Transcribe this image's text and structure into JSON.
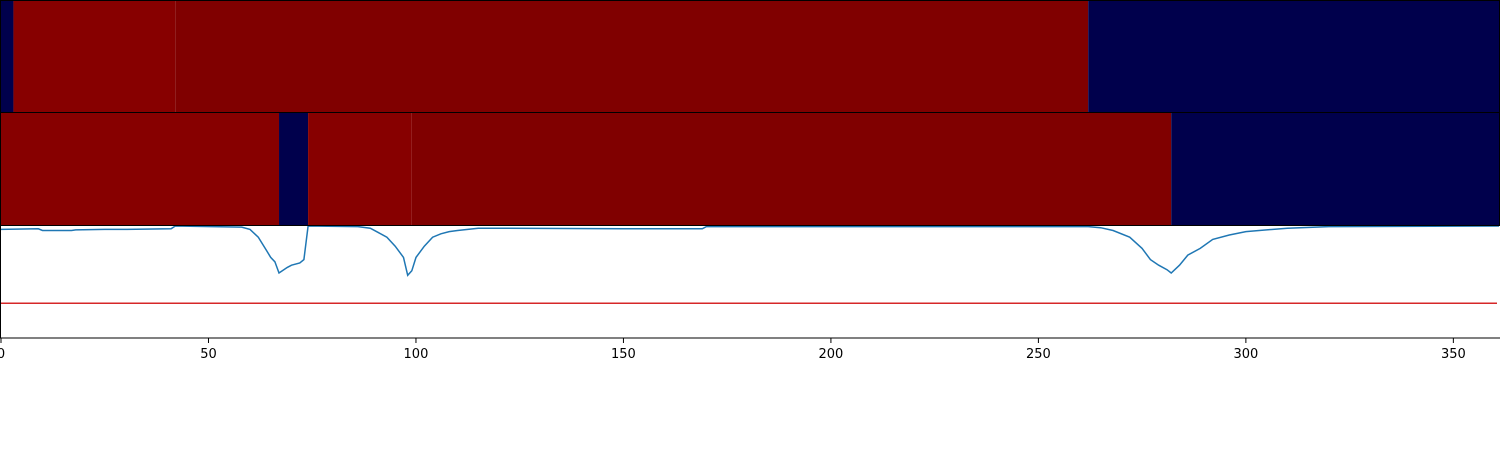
{
  "chart_data": [
    {
      "type": "heatmap",
      "xlim": [
        0,
        361
      ],
      "colors": {
        "high": "#800000",
        "high_alt": "#870000",
        "low": "#00004c"
      },
      "segments": [
        {
          "x0": 0,
          "x1": 3,
          "level": "low"
        },
        {
          "x0": 3,
          "x1": 42,
          "level": "high_alt"
        },
        {
          "x0": 42,
          "x1": 262,
          "level": "high"
        },
        {
          "x0": 262,
          "x1": 361,
          "level": "low"
        }
      ]
    },
    {
      "type": "heatmap",
      "xlim": [
        0,
        361
      ],
      "colors": {
        "high": "#800000",
        "high_alt": "#870000",
        "low": "#00004c"
      },
      "segments": [
        {
          "x0": 0,
          "x1": 67,
          "level": "high_alt"
        },
        {
          "x0": 67,
          "x1": 74,
          "level": "low"
        },
        {
          "x0": 74,
          "x1": 99,
          "level": "high_alt"
        },
        {
          "x0": 99,
          "x1": 282,
          "level": "high"
        },
        {
          "x0": 282,
          "x1": 361,
          "level": "low"
        }
      ]
    },
    {
      "type": "line",
      "xlim": [
        0,
        361
      ],
      "ylim": [
        0,
        1
      ],
      "x_ticks": [
        0,
        50,
        100,
        150,
        200,
        250,
        300,
        350
      ],
      "tick_labels": [
        "0",
        "50",
        "100",
        "150",
        "200",
        "250",
        "300",
        "350"
      ],
      "threshold": {
        "value": 0.31,
        "color": "#d62728"
      },
      "series": [
        {
          "color": "#1f77b4",
          "points": [
            [
              0,
              0.97
            ],
            [
              9,
              0.975
            ],
            [
              10,
              0.96
            ],
            [
              17,
              0.96
            ],
            [
              18,
              0.965
            ],
            [
              25,
              0.97
            ],
            [
              30,
              0.97
            ],
            [
              41,
              0.975
            ],
            [
              42,
              1.0
            ],
            [
              58,
              0.99
            ],
            [
              60,
              0.97
            ],
            [
              62,
              0.9
            ],
            [
              64,
              0.78
            ],
            [
              65,
              0.72
            ],
            [
              66,
              0.68
            ],
            [
              67,
              0.58
            ],
            [
              69,
              0.63
            ],
            [
              70,
              0.65
            ],
            [
              72,
              0.67
            ],
            [
              73,
              0.7
            ],
            [
              74,
              1.0
            ],
            [
              86,
              0.995
            ],
            [
              89,
              0.98
            ],
            [
              91,
              0.94
            ],
            [
              93,
              0.9
            ],
            [
              95,
              0.82
            ],
            [
              97,
              0.72
            ],
            [
              98,
              0.56
            ],
            [
              99,
              0.6
            ],
            [
              100,
              0.72
            ],
            [
              102,
              0.82
            ],
            [
              104,
              0.9
            ],
            [
              106,
              0.93
            ],
            [
              108,
              0.95
            ],
            [
              110,
              0.96
            ],
            [
              115,
              0.98
            ],
            [
              120,
              0.98
            ],
            [
              150,
              0.975
            ],
            [
              169,
              0.975
            ],
            [
              170,
              0.995
            ],
            [
              262,
              0.995
            ],
            [
              265,
              0.985
            ],
            [
              268,
              0.96
            ],
            [
              272,
              0.9
            ],
            [
              275,
              0.8
            ],
            [
              277,
              0.7
            ],
            [
              279,
              0.65
            ],
            [
              281,
              0.61
            ],
            [
              282,
              0.58
            ],
            [
              284,
              0.65
            ],
            [
              286,
              0.74
            ],
            [
              289,
              0.8
            ],
            [
              292,
              0.88
            ],
            [
              296,
              0.92
            ],
            [
              300,
              0.95
            ],
            [
              310,
              0.98
            ],
            [
              320,
              0.995
            ],
            [
              361,
              1.0
            ]
          ]
        }
      ]
    }
  ]
}
